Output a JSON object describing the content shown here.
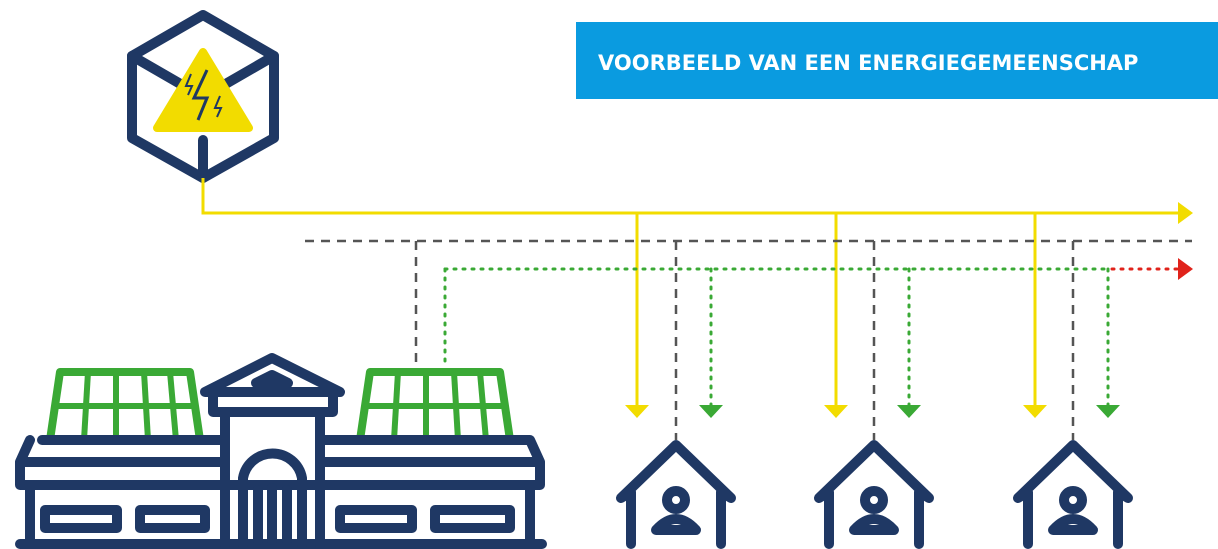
{
  "header": {
    "title": "VOORBEELD VAN EEN ENERGIEGEMEENSCHAP"
  }
}
